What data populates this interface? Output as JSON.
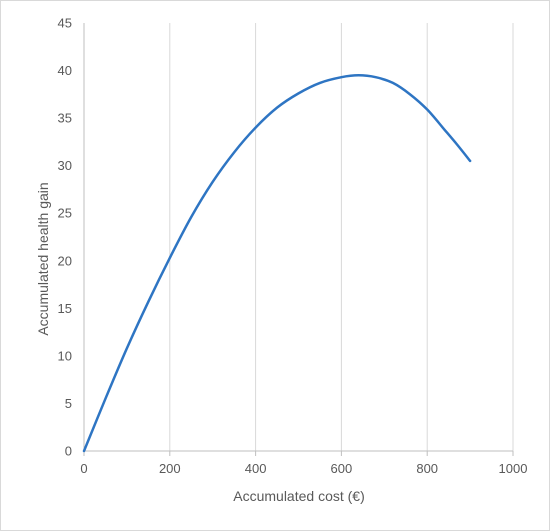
{
  "chart_data": {
    "type": "line",
    "title": "",
    "xlabel": "Accumulated cost (€)",
    "ylabel": "Accumulated health gain",
    "xlim": [
      0,
      1000
    ],
    "ylim": [
      0,
      45
    ],
    "x_ticks": [
      0,
      200,
      400,
      600,
      800,
      1000
    ],
    "y_ticks": [
      0,
      5,
      10,
      15,
      20,
      25,
      30,
      35,
      40,
      45
    ],
    "grid": "vertical",
    "legend": "none",
    "series": [
      {
        "color": "#2e75c3",
        "x": [
          0,
          50,
          100,
          150,
          200,
          250,
          300,
          350,
          400,
          450,
          500,
          550,
          600,
          640,
          680,
          720,
          760,
          800,
          840,
          870,
          900
        ],
        "y": [
          0,
          5.5,
          10.8,
          15.7,
          20.3,
          24.6,
          28.3,
          31.4,
          34.0,
          36.1,
          37.6,
          38.7,
          39.3,
          39.5,
          39.3,
          38.7,
          37.5,
          35.9,
          33.8,
          32.2,
          30.5
        ]
      }
    ]
  }
}
